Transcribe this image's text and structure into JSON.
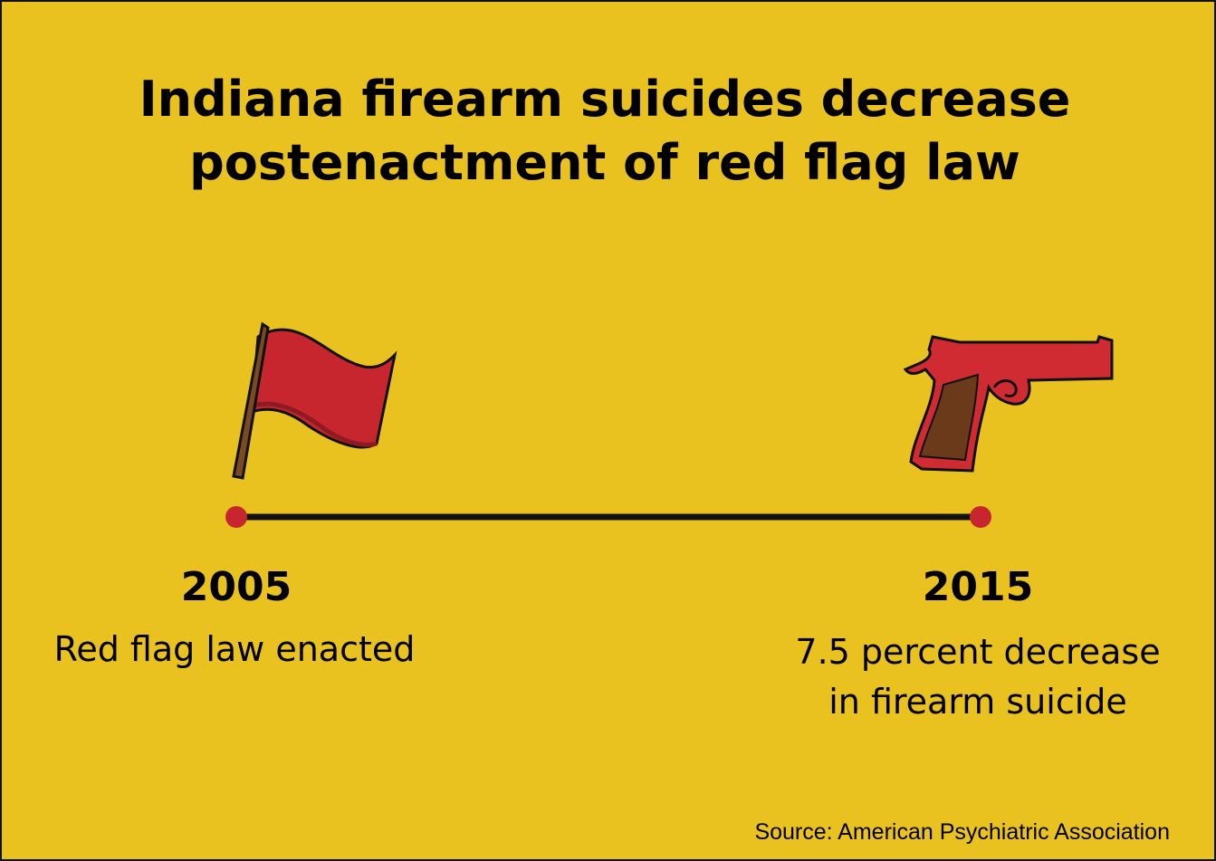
{
  "title": [
    "Indiana firearm suicides decrease",
    "postenactment of red flag law"
  ],
  "events": [
    {
      "year": "2005",
      "description": [
        "Red flag law enacted"
      ]
    },
    {
      "year": "2015",
      "description": [
        "7.5 percent decrease",
        "in firearm suicide"
      ]
    }
  ],
  "source": "Source: American Psychiatric Association"
}
